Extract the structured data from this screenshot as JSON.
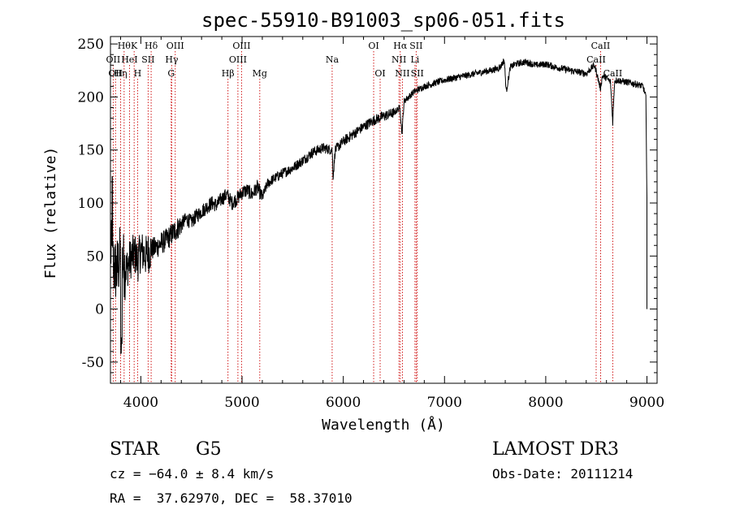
{
  "chart_data": {
    "type": "line",
    "title": "spec-55910-B91003_sp06-051.fits",
    "xlabel": "Wavelength (Å)",
    "ylabel": "Flux (relative)",
    "xlim": [
      3700,
      9100
    ],
    "ylim": [
      -70,
      257
    ],
    "x_ticks": [
      4000,
      5000,
      6000,
      7000,
      8000,
      9000
    ],
    "y_ticks": [
      -50,
      0,
      50,
      100,
      150,
      200,
      250
    ],
    "line_color": "#000000",
    "marker_color": "#cc0000",
    "series": [
      {
        "name": "spectrum",
        "x": [
          3700,
          3730,
          3760,
          3800,
          3830,
          3860,
          3900,
          3940,
          3970,
          4000,
          4050,
          4100,
          4150,
          4200,
          4250,
          4300,
          4350,
          4400,
          4450,
          4500,
          4550,
          4600,
          4650,
          4700,
          4750,
          4800,
          4850,
          4900,
          4950,
          5000,
          5050,
          5100,
          5150,
          5200,
          5250,
          5300,
          5400,
          5500,
          5600,
          5700,
          5800,
          5890,
          5900,
          5920,
          6000,
          6100,
          6200,
          6300,
          6400,
          6500,
          6560,
          6580,
          6600,
          6700,
          6800,
          6900,
          7000,
          7100,
          7200,
          7300,
          7400,
          7500,
          7550,
          7590,
          7610,
          7650,
          7700,
          7800,
          7900,
          8000,
          8100,
          8200,
          8300,
          8400,
          8480,
          8500,
          8540,
          8560,
          8600,
          8640,
          8662,
          8680,
          8700,
          8800,
          8900,
          8960,
          8990,
          8995,
          9000
        ],
        "y": [
          58,
          40,
          35,
          50,
          42,
          38,
          48,
          52,
          45,
          55,
          50,
          56,
          58,
          62,
          65,
          70,
          75,
          80,
          85,
          82,
          88,
          92,
          96,
          100,
          98,
          104,
          108,
          100,
          104,
          110,
          112,
          108,
          115,
          105,
          118,
          122,
          128,
          133,
          140,
          148,
          152,
          150,
          125,
          150,
          158,
          165,
          172,
          178,
          182,
          185,
          190,
          165,
          196,
          205,
          210,
          213,
          216,
          218,
          220,
          222,
          224,
          226,
          228,
          235,
          205,
          228,
          231,
          233,
          230,
          231,
          228,
          226,
          224,
          222,
          230,
          224,
          208,
          220,
          218,
          214,
          176,
          215,
          216,
          214,
          212,
          210,
          200,
          140,
          105
        ]
      }
    ],
    "spectral_lines": {
      "row1": [
        {
          "wl": 3835,
          "label": "Hθ"
        },
        {
          "wl": 3934,
          "label": "K"
        },
        {
          "wl": 4102,
          "label": "Hδ"
        },
        {
          "wl": 4340,
          "label": "OIII"
        },
        {
          "wl": 4995,
          "label": "OIII"
        },
        {
          "wl": 6300,
          "label": "OI"
        },
        {
          "wl": 6563,
          "label": "Hα"
        },
        {
          "wl": 6720,
          "label": "SII"
        },
        {
          "wl": 8542,
          "label": "CaII"
        }
      ],
      "row2": [
        {
          "wl": 3727,
          "label": "OII"
        },
        {
          "wl": 3888,
          "label": "HeI"
        },
        {
          "wl": 4072,
          "label": "SII"
        },
        {
          "wl": 4305,
          "label": "Hγ"
        },
        {
          "wl": 4959,
          "label": "OIII"
        },
        {
          "wl": 5890,
          "label": "Na"
        },
        {
          "wl": 6550,
          "label": "NII"
        },
        {
          "wl": 6708,
          "label": "Li"
        },
        {
          "wl": 8498,
          "label": "CaII"
        }
      ],
      "row3": [
        {
          "wl": 3750,
          "label": "OII"
        },
        {
          "wl": 3800,
          "label": "Hη"
        },
        {
          "wl": 3968,
          "label": "H"
        },
        {
          "wl": 4300,
          "label": "G"
        },
        {
          "wl": 4861,
          "label": "Hβ"
        },
        {
          "wl": 5175,
          "label": "Mg"
        },
        {
          "wl": 6364,
          "label": "OI"
        },
        {
          "wl": 6584,
          "label": "NII"
        },
        {
          "wl": 6731,
          "label": "SII"
        },
        {
          "wl": 8662,
          "label": "CaII"
        }
      ]
    }
  },
  "info": {
    "object_class": "STAR",
    "subclass": "G5",
    "survey": "LAMOST DR3",
    "velocity": "cz = −64.0 ± 8.4 km/s",
    "obs_date": "Obs-Date: 20111214",
    "coords": "RA =  37.62970, DEC =  58.37010"
  }
}
